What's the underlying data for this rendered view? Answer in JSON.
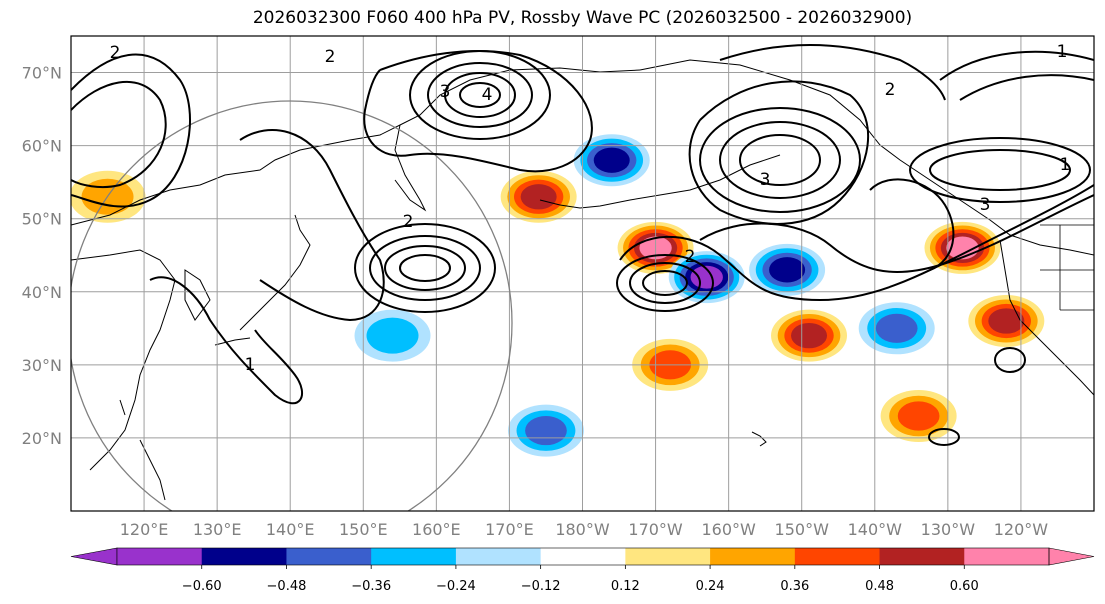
{
  "chart_data": {
    "type": "contour map",
    "title": "2026032300 F060 400 hPa PV, Rossby Wave PC (2026032500 - 2026032900)",
    "lon_range": [
      110,
      250
    ],
    "lat_range": [
      10,
      75
    ],
    "lat_ticks": [
      {
        "value": 20,
        "label": "20°N"
      },
      {
        "value": 30,
        "label": "30°N"
      },
      {
        "value": 40,
        "label": "40°N"
      },
      {
        "value": 50,
        "label": "50°N"
      },
      {
        "value": 60,
        "label": "60°N"
      },
      {
        "value": 70,
        "label": "70°N"
      }
    ],
    "lon_ticks": [
      {
        "value": 120,
        "label": "120°E"
      },
      {
        "value": 130,
        "label": "130°E"
      },
      {
        "value": 140,
        "label": "140°E"
      },
      {
        "value": 150,
        "label": "150°E"
      },
      {
        "value": 160,
        "label": "160°E"
      },
      {
        "value": 170,
        "label": "170°E"
      },
      {
        "value": 180,
        "label": "180°W"
      },
      {
        "value": 190,
        "label": "170°W"
      },
      {
        "value": 200,
        "label": "160°W"
      },
      {
        "value": 210,
        "label": "150°W"
      },
      {
        "value": 220,
        "label": "140°W"
      },
      {
        "value": 230,
        "label": "130°W"
      },
      {
        "value": 240,
        "label": "120°W"
      }
    ],
    "colorbar": {
      "colors": [
        "#9932cc",
        "#00008b",
        "#3a5fcd",
        "#00bfff",
        "#b0e2ff",
        "#ffffff",
        "#ffe680",
        "#ffa500",
        "#ff4500",
        "#b22222",
        "#ff82ab"
      ],
      "ticks": [
        "−0.60",
        "−0.48",
        "−0.36",
        "−0.24",
        "−0.12",
        "0.12",
        "0.24",
        "0.36",
        "0.48",
        "0.60"
      ],
      "extend": "both"
    },
    "pv_contour_labels": [
      "1",
      "2",
      "3",
      "4"
    ],
    "reference_circle": {
      "center_lon": 140,
      "center_lat": 35,
      "note": "grey circle"
    },
    "shaded_features": [
      {
        "lon": 190,
        "lat": 46,
        "value": 0.66
      },
      {
        "lon": 232,
        "lat": 46,
        "value": 0.66
      },
      {
        "lon": 197,
        "lat": 42,
        "value": -0.66
      },
      {
        "lon": 208,
        "lat": 43,
        "value": -0.55
      },
      {
        "lon": 174,
        "lat": 53,
        "value": 0.54
      },
      {
        "lon": 184,
        "lat": 58,
        "value": -0.55
      },
      {
        "lon": 211,
        "lat": 34,
        "value": 0.5
      },
      {
        "lon": 226,
        "lat": 23,
        "value": 0.4
      },
      {
        "lon": 223,
        "lat": 35,
        "value": -0.4
      },
      {
        "lon": 238,
        "lat": 36,
        "value": 0.5
      },
      {
        "lon": 192,
        "lat": 30,
        "value": 0.4
      },
      {
        "lon": 175,
        "lat": 21,
        "value": -0.4
      },
      {
        "lon": 115,
        "lat": 53,
        "value": 0.3
      },
      {
        "lon": 154,
        "lat": 34,
        "value": -0.3
      }
    ]
  }
}
